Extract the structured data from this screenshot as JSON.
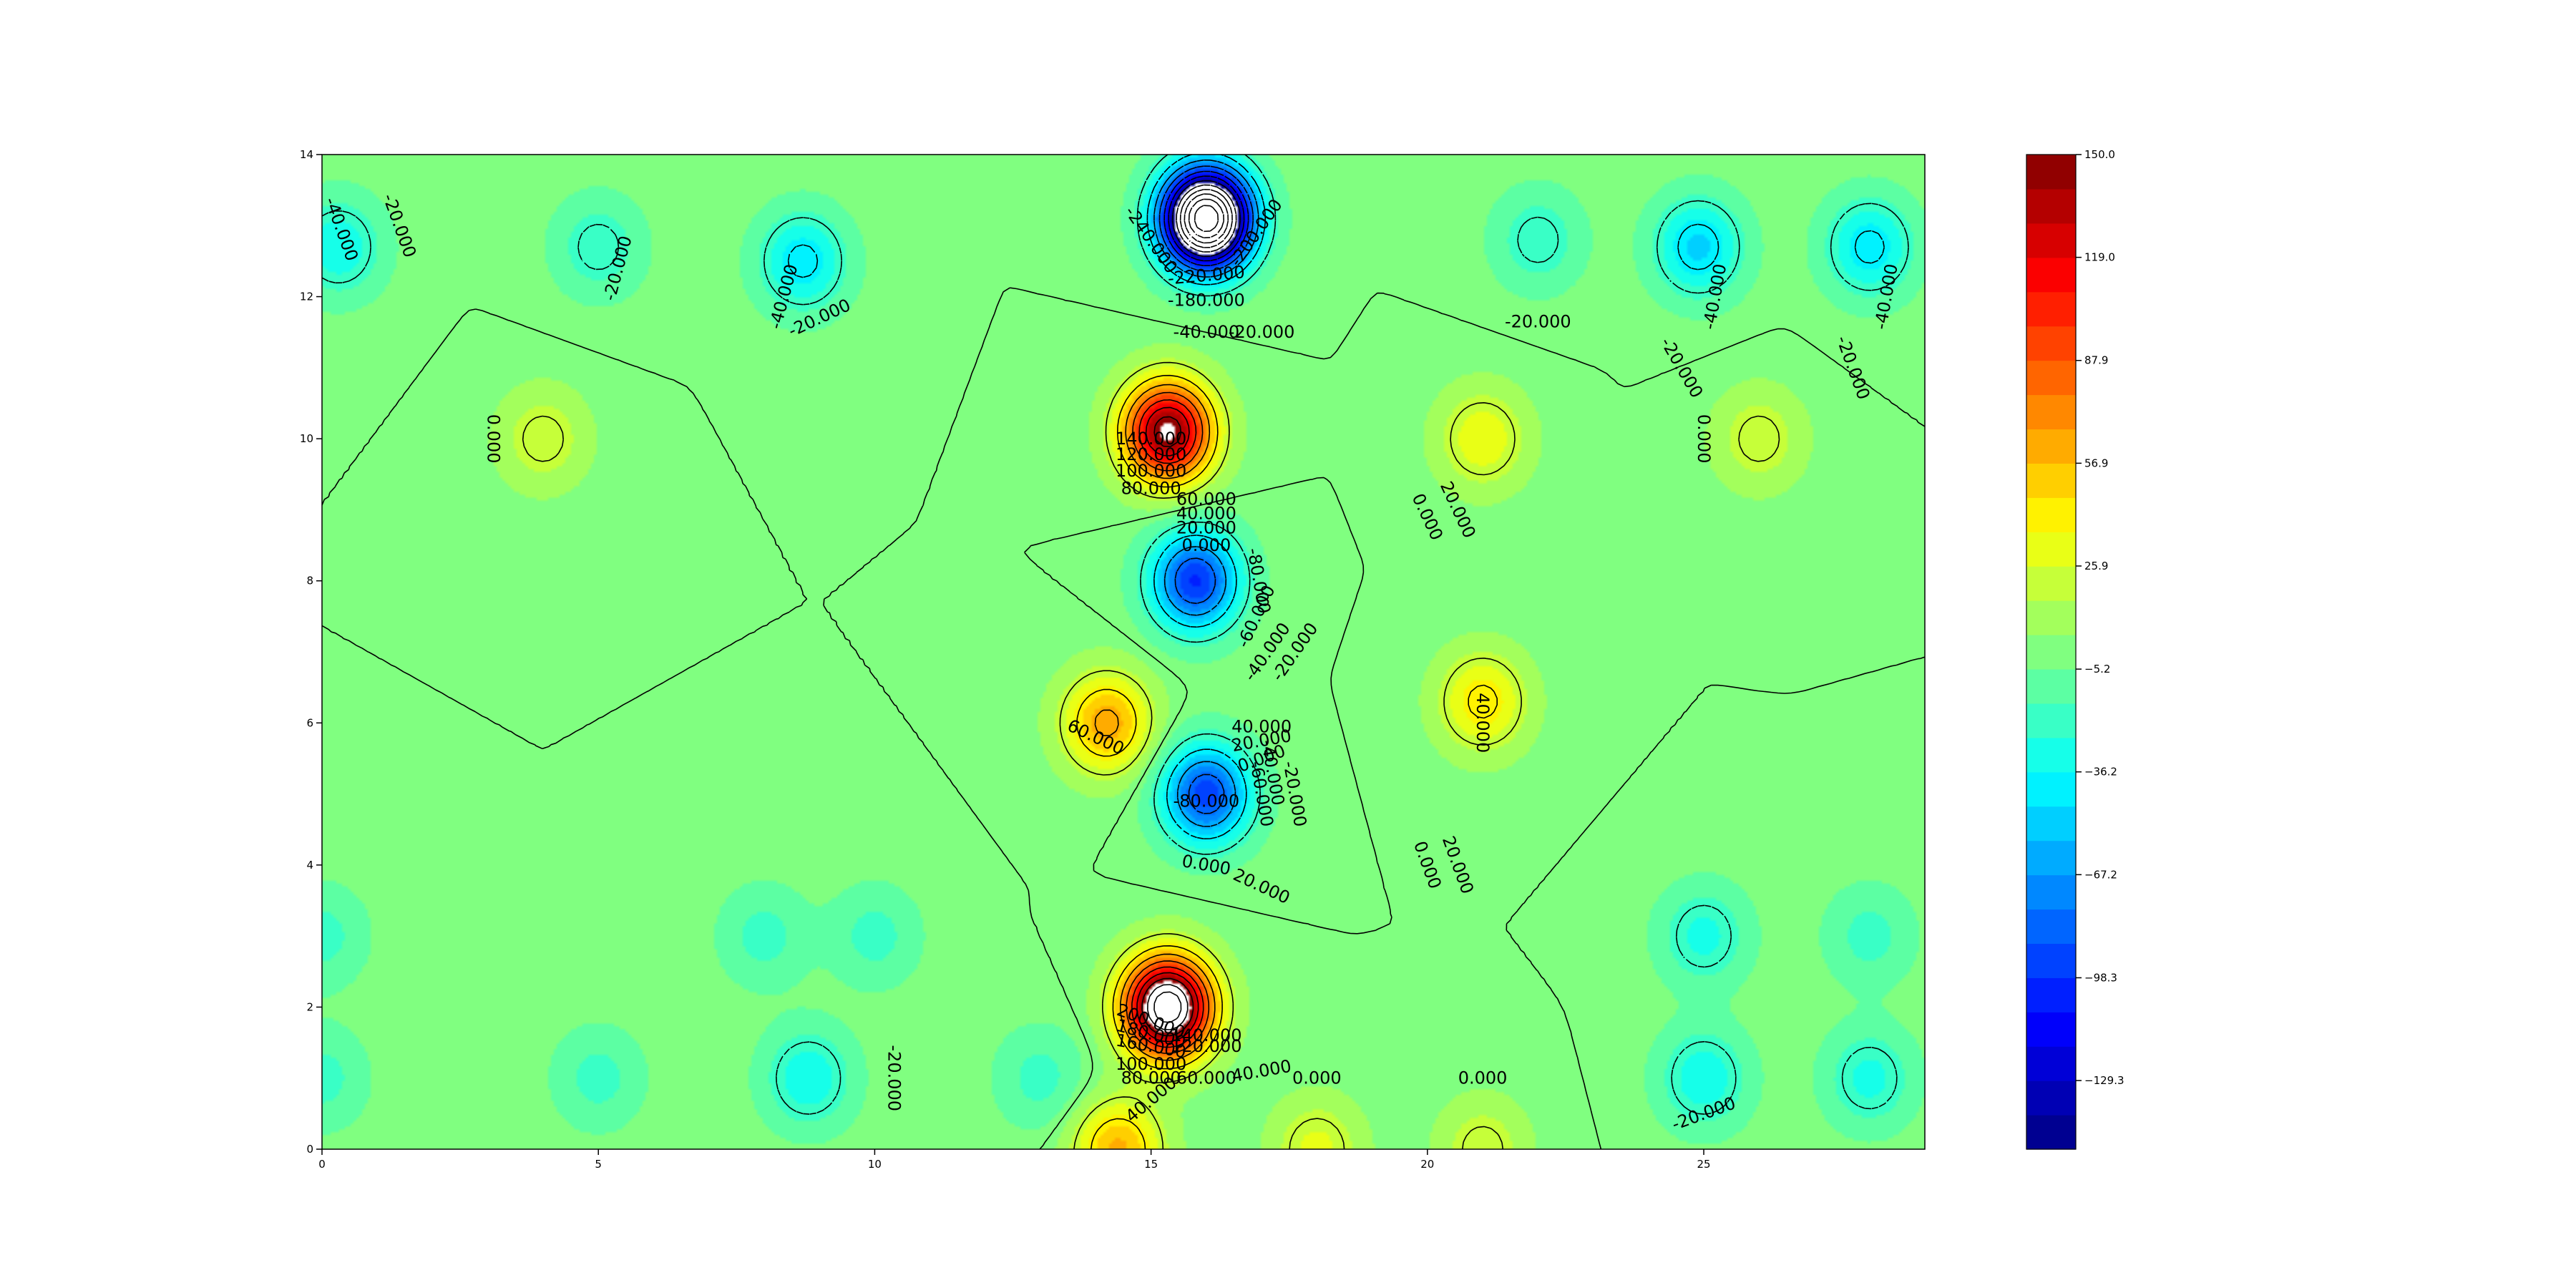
{
  "chart_data": {
    "type": "filled-contour",
    "x_ticks": [
      "0",
      "5",
      "10",
      "15",
      "20",
      "25"
    ],
    "y_ticks": [
      "0",
      "2",
      "4",
      "6",
      "8",
      "10",
      "12",
      "14"
    ],
    "xlim": [
      0,
      29
    ],
    "ylim": [
      0,
      14
    ],
    "value_range": [
      -150,
      150
    ],
    "colormap": "jet",
    "colorbar_ticks": [
      "150.0",
      "119.0",
      "87.9",
      "56.9",
      "25.9",
      "−5.2",
      "−36.2",
      "−67.2",
      "−98.3",
      "−129.3"
    ],
    "colorbar_tick_values": [
      150.0,
      119.0,
      87.9,
      56.9,
      25.9,
      -5.2,
      -36.2,
      -67.2,
      -98.3,
      -129.3
    ],
    "features": [
      {
        "x": 16.0,
        "y": 13.1,
        "value": -260
      },
      {
        "x": 15.3,
        "y": 10.1,
        "value": 155
      },
      {
        "x": 15.8,
        "y": 8.0,
        "value": -100
      },
      {
        "x": 14.2,
        "y": 6.0,
        "value": 65
      },
      {
        "x": 16.0,
        "y": 5.0,
        "value": -95
      },
      {
        "x": 15.3,
        "y": 2.0,
        "value": 200
      },
      {
        "x": 14.4,
        "y": 0.0,
        "value": 60
      },
      {
        "x": 21.0,
        "y": 10.0,
        "value": 35
      },
      {
        "x": 21.0,
        "y": 6.3,
        "value": 45
      },
      {
        "x": 21.0,
        "y": 0.0,
        "value": 25
      },
      {
        "x": 18.0,
        "y": 0.0,
        "value": 30
      },
      {
        "x": 4.0,
        "y": 10.0,
        "value": 25
      },
      {
        "x": 26.0,
        "y": 10.0,
        "value": 25
      },
      {
        "x": 0.3,
        "y": 12.7,
        "value": -35
      },
      {
        "x": 5.0,
        "y": 12.7,
        "value": -25
      },
      {
        "x": 8.7,
        "y": 12.5,
        "value": -45
      },
      {
        "x": 22.0,
        "y": 12.8,
        "value": -25
      },
      {
        "x": 24.9,
        "y": 12.7,
        "value": -50
      },
      {
        "x": 28.0,
        "y": 12.7,
        "value": -45
      },
      {
        "x": 8.0,
        "y": 3.0,
        "value": -20
      },
      {
        "x": 10.0,
        "y": 3.0,
        "value": -20
      },
      {
        "x": 0.0,
        "y": 3.0,
        "value": -20
      },
      {
        "x": 0.0,
        "y": 1.0,
        "value": -20
      },
      {
        "x": 5.0,
        "y": 1.0,
        "value": -20
      },
      {
        "x": 8.8,
        "y": 1.0,
        "value": -35
      },
      {
        "x": 13.0,
        "y": 1.0,
        "value": -20
      },
      {
        "x": 25.0,
        "y": 3.0,
        "value": -30
      },
      {
        "x": 25.0,
        "y": 1.0,
        "value": -35
      },
      {
        "x": 28.0,
        "y": 3.0,
        "value": -20
      },
      {
        "x": 28.0,
        "y": 1.0,
        "value": -30
      }
    ],
    "contour_labels": [
      {
        "text": "-40.000",
        "x": 0.35,
        "y": 12.95,
        "rot": 70
      },
      {
        "text": "-20.000",
        "x": 1.4,
        "y": 13.0,
        "rot": 70
      },
      {
        "text": "-20.000",
        "x": 5.35,
        "y": 12.4,
        "rot": -75
      },
      {
        "text": "-40.000",
        "x": 8.35,
        "y": 12.0,
        "rot": -75
      },
      {
        "text": "-20.000",
        "x": 9.0,
        "y": 11.7,
        "rot": -25
      },
      {
        "text": "-240.000",
        "x": 15.0,
        "y": 12.8,
        "rot": 55
      },
      {
        "text": "-200.000",
        "x": 16.9,
        "y": 12.9,
        "rot": -55
      },
      {
        "text": "-220.000",
        "x": 16.0,
        "y": 12.3,
        "rot": -5
      },
      {
        "text": "-180.000",
        "x": 16.0,
        "y": 11.95,
        "rot": 0
      },
      {
        "text": "-20.000",
        "x": 17.0,
        "y": 11.5,
        "rot": 0
      },
      {
        "text": "-40.000",
        "x": 16.0,
        "y": 11.5,
        "rot": 0
      },
      {
        "text": "-20.000",
        "x": 22.0,
        "y": 11.65,
        "rot": 0
      },
      {
        "text": "-40.000",
        "x": 25.2,
        "y": 12.0,
        "rot": -80
      },
      {
        "text": "-20.000",
        "x": 24.6,
        "y": 11.0,
        "rot": 60
      },
      {
        "text": "-40.000",
        "x": 28.3,
        "y": 12.0,
        "rot": -80
      },
      {
        "text": "-20.000",
        "x": 27.7,
        "y": 11.0,
        "rot": 70
      },
      {
        "text": "0.000",
        "x": 3.1,
        "y": 10.0,
        "rot": 90
      },
      {
        "text": "0.000",
        "x": 25.0,
        "y": 10.0,
        "rot": 90
      },
      {
        "text": "140.000",
        "x": 15.0,
        "y": 10.0,
        "rot": 0
      },
      {
        "text": "120.000",
        "x": 15.0,
        "y": 9.78,
        "rot": 0
      },
      {
        "text": "100.000",
        "x": 15.0,
        "y": 9.55,
        "rot": 0
      },
      {
        "text": "80.000",
        "x": 15.0,
        "y": 9.3,
        "rot": 0
      },
      {
        "text": "60.000",
        "x": 16.0,
        "y": 9.15,
        "rot": 0
      },
      {
        "text": "40.000",
        "x": 16.0,
        "y": 8.95,
        "rot": 0
      },
      {
        "text": "20.000",
        "x": 16.0,
        "y": 8.75,
        "rot": 0
      },
      {
        "text": "0.000",
        "x": 16.0,
        "y": 8.5,
        "rot": 0
      },
      {
        "text": "0.000",
        "x": 20.0,
        "y": 8.9,
        "rot": 65
      },
      {
        "text": "20.000",
        "x": 20.55,
        "y": 9.0,
        "rot": 65
      },
      {
        "text": "-80.000",
        "x": 16.95,
        "y": 8.0,
        "rot": 80
      },
      {
        "text": "-60.000",
        "x": 16.9,
        "y": 7.5,
        "rot": -65
      },
      {
        "text": "-40.000",
        "x": 17.1,
        "y": 7.0,
        "rot": -55
      },
      {
        "text": "-20.000",
        "x": 17.6,
        "y": 7.0,
        "rot": -55
      },
      {
        "text": "60.000",
        "x": 14.0,
        "y": 5.8,
        "rot": 25
      },
      {
        "text": "40.000",
        "x": 17.0,
        "y": 5.95,
        "rot": 0
      },
      {
        "text": "20.000",
        "x": 17.0,
        "y": 5.75,
        "rot": -10
      },
      {
        "text": "0.000",
        "x": 17.0,
        "y": 5.5,
        "rot": -20
      },
      {
        "text": "-40.000",
        "x": 17.2,
        "y": 5.3,
        "rot": 80
      },
      {
        "text": "-60.000",
        "x": 17.0,
        "y": 5.0,
        "rot": 80
      },
      {
        "text": "-20.000",
        "x": 17.6,
        "y": 5.0,
        "rot": 80
      },
      {
        "text": "-80.000",
        "x": 16.0,
        "y": 4.9,
        "rot": 0
      },
      {
        "text": "40.000",
        "x": 21.0,
        "y": 6.0,
        "rot": 90
      },
      {
        "text": "0.000",
        "x": 20.0,
        "y": 4.0,
        "rot": 70
      },
      {
        "text": "20.000",
        "x": 20.55,
        "y": 4.0,
        "rot": 70
      },
      {
        "text": "0.000",
        "x": 16.0,
        "y": 4.0,
        "rot": 10
      },
      {
        "text": "20.000",
        "x": 17.0,
        "y": 3.7,
        "rot": 25
      },
      {
        "text": "200.000",
        "x": 15.0,
        "y": 1.8,
        "rot": 20
      },
      {
        "text": "180.000",
        "x": 15.0,
        "y": 1.62,
        "rot": 15
      },
      {
        "text": "160.000",
        "x": 15.0,
        "y": 1.45,
        "rot": 10
      },
      {
        "text": "140.000",
        "x": 16.0,
        "y": 1.6,
        "rot": 0
      },
      {
        "text": "120.000",
        "x": 16.0,
        "y": 1.45,
        "rot": 0
      },
      {
        "text": "100.000",
        "x": 15.0,
        "y": 1.2,
        "rot": 0
      },
      {
        "text": "80.000",
        "x": 15.0,
        "y": 1.0,
        "rot": 0
      },
      {
        "text": "60.000",
        "x": 16.0,
        "y": 1.0,
        "rot": 0
      },
      {
        "text": "40.000",
        "x": 17.0,
        "y": 1.1,
        "rot": -10
      },
      {
        "text": "40.000",
        "x": 15.0,
        "y": 0.7,
        "rot": -40
      },
      {
        "text": "0.000",
        "x": 18.0,
        "y": 1.0,
        "rot": 0
      },
      {
        "text": "0.000",
        "x": 21.0,
        "y": 1.0,
        "rot": 0
      },
      {
        "text": "-20.000",
        "x": 10.35,
        "y": 1.0,
        "rot": 90
      },
      {
        "text": "-20.000",
        "x": 25.0,
        "y": 0.5,
        "rot": -20
      }
    ]
  }
}
